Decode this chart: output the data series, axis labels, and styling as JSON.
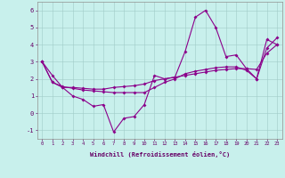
{
  "xlabel": "Windchill (Refroidissement éolien,°C)",
  "xlim": [
    -0.5,
    23.5
  ],
  "ylim": [
    -1.5,
    6.5
  ],
  "yticks": [
    -1,
    0,
    1,
    2,
    3,
    4,
    5,
    6
  ],
  "x_ticks": [
    0,
    1,
    2,
    3,
    4,
    5,
    6,
    7,
    8,
    9,
    10,
    11,
    12,
    13,
    14,
    15,
    16,
    17,
    18,
    19,
    20,
    21,
    22,
    23
  ],
  "background_color": "#c8f0ec",
  "grid_color": "#a0ccc8",
  "line_color": "#8b008b",
  "line1_y": [
    3.0,
    2.2,
    1.5,
    1.0,
    0.8,
    0.4,
    0.5,
    -1.1,
    -0.3,
    -0.2,
    0.5,
    2.2,
    2.0,
    2.1,
    3.6,
    5.6,
    6.0,
    5.0,
    3.3,
    3.4,
    2.6,
    2.0,
    4.3,
    4.0
  ],
  "line2_y": [
    3.0,
    1.8,
    1.55,
    1.45,
    1.35,
    1.3,
    1.25,
    1.2,
    1.2,
    1.2,
    1.2,
    1.5,
    1.8,
    2.0,
    2.3,
    2.45,
    2.55,
    2.65,
    2.7,
    2.7,
    2.5,
    2.0,
    3.8,
    4.4
  ],
  "line3_y": [
    3.0,
    1.8,
    1.5,
    1.5,
    1.45,
    1.4,
    1.4,
    1.5,
    1.55,
    1.6,
    1.7,
    1.9,
    2.0,
    2.1,
    2.2,
    2.3,
    2.4,
    2.5,
    2.55,
    2.6,
    2.6,
    2.55,
    3.5,
    4.0
  ],
  "lw": 0.8,
  "ms": 2.0,
  "xlabel_fontsize": 5.0,
  "xtick_fontsize": 4.0,
  "ytick_fontsize": 5.0,
  "label_color": "#660066"
}
